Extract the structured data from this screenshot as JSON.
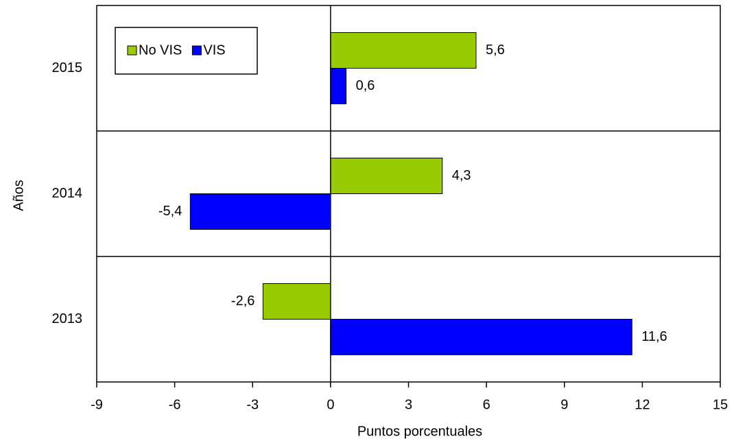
{
  "chart_data": {
    "type": "barh",
    "categories": [
      "2015",
      "2014",
      "2013"
    ],
    "series": [
      {
        "name": "No VIS",
        "color": "#99cc00",
        "values": [
          5.6,
          4.3,
          -2.6
        ],
        "value_labels": [
          "5,6",
          "4,3",
          "-2,6"
        ]
      },
      {
        "name": "VIS",
        "color": "#0000ff",
        "values": [
          0.6,
          -5.4,
          11.6
        ],
        "value_labels": [
          "0,6",
          "-5,4",
          "11,6"
        ]
      }
    ],
    "xlim": [
      -9,
      15
    ],
    "xticks": [
      -9,
      -6,
      -3,
      0,
      3,
      6,
      9,
      12,
      15
    ],
    "x_label": "Puntos porcentuales",
    "y_label": "Años",
    "legend": "upper left"
  }
}
